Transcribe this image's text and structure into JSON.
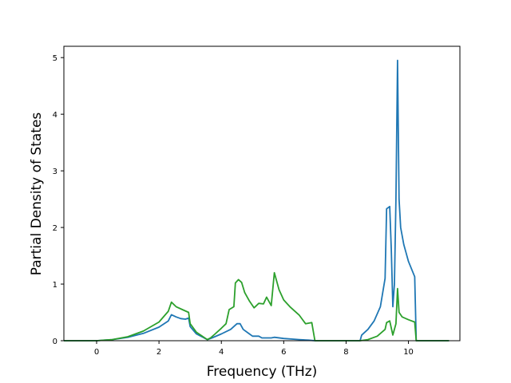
{
  "chart_data": {
    "type": "line",
    "title": "",
    "xlabel": "Frequency (THz)",
    "ylabel": "Partial Density of States",
    "xlim": [
      -1.05,
      11.65
    ],
    "ylim": [
      0,
      5.2
    ],
    "xticks": [
      0,
      2,
      4,
      6,
      8,
      10
    ],
    "yticks": [
      0,
      1,
      2,
      3,
      4,
      5
    ],
    "grid": false,
    "legend": "none",
    "series": [
      {
        "color": "#1f77b4",
        "points": [
          [
            -1.05,
            0
          ],
          [
            0,
            0
          ],
          [
            0.5,
            0.02
          ],
          [
            1,
            0.06
          ],
          [
            1.5,
            0.13
          ],
          [
            2,
            0.24
          ],
          [
            2.3,
            0.35
          ],
          [
            2.4,
            0.46
          ],
          [
            2.55,
            0.42
          ],
          [
            2.7,
            0.39
          ],
          [
            2.85,
            0.38
          ],
          [
            2.95,
            0.4
          ],
          [
            3.0,
            0.25
          ],
          [
            3.2,
            0.12
          ],
          [
            3.55,
            0.02
          ],
          [
            3.7,
            0.05
          ],
          [
            4.0,
            0.12
          ],
          [
            4.3,
            0.2
          ],
          [
            4.5,
            0.3
          ],
          [
            4.6,
            0.3
          ],
          [
            4.7,
            0.2
          ],
          [
            4.9,
            0.12
          ],
          [
            5.0,
            0.08
          ],
          [
            5.2,
            0.08
          ],
          [
            5.3,
            0.05
          ],
          [
            5.6,
            0.05
          ],
          [
            5.7,
            0.06
          ],
          [
            6.0,
            0.04
          ],
          [
            6.5,
            0.02
          ],
          [
            6.8,
            0.01
          ],
          [
            7.0,
            0
          ],
          [
            8.45,
            0
          ],
          [
            8.5,
            0.1
          ],
          [
            8.7,
            0.2
          ],
          [
            8.9,
            0.35
          ],
          [
            9.1,
            0.6
          ],
          [
            9.25,
            1.1
          ],
          [
            9.3,
            2.33
          ],
          [
            9.4,
            2.37
          ],
          [
            9.45,
            1.6
          ],
          [
            9.5,
            0.6
          ],
          [
            9.55,
            1.0
          ],
          [
            9.6,
            2.5
          ],
          [
            9.65,
            4.95
          ],
          [
            9.7,
            2.5
          ],
          [
            9.75,
            2.0
          ],
          [
            9.85,
            1.7
          ],
          [
            10.0,
            1.4
          ],
          [
            10.2,
            1.13
          ],
          [
            10.25,
            0
          ],
          [
            11.3,
            0
          ]
        ]
      },
      {
        "color": "#2ca02c",
        "points": [
          [
            -1.05,
            0
          ],
          [
            0,
            0
          ],
          [
            0.5,
            0.02
          ],
          [
            1,
            0.07
          ],
          [
            1.5,
            0.17
          ],
          [
            2,
            0.33
          ],
          [
            2.3,
            0.52
          ],
          [
            2.4,
            0.68
          ],
          [
            2.55,
            0.6
          ],
          [
            2.75,
            0.55
          ],
          [
            2.95,
            0.5
          ],
          [
            3.0,
            0.3
          ],
          [
            3.2,
            0.15
          ],
          [
            3.55,
            0.02
          ],
          [
            3.65,
            0.05
          ],
          [
            3.8,
            0.12
          ],
          [
            4.0,
            0.22
          ],
          [
            4.15,
            0.3
          ],
          [
            4.25,
            0.55
          ],
          [
            4.4,
            0.6
          ],
          [
            4.45,
            1.02
          ],
          [
            4.55,
            1.08
          ],
          [
            4.65,
            1.03
          ],
          [
            4.75,
            0.85
          ],
          [
            4.9,
            0.7
          ],
          [
            5.05,
            0.58
          ],
          [
            5.2,
            0.66
          ],
          [
            5.35,
            0.65
          ],
          [
            5.45,
            0.77
          ],
          [
            5.6,
            0.62
          ],
          [
            5.7,
            1.2
          ],
          [
            5.85,
            0.9
          ],
          [
            6.0,
            0.72
          ],
          [
            6.2,
            0.6
          ],
          [
            6.5,
            0.45
          ],
          [
            6.7,
            0.3
          ],
          [
            6.9,
            0.32
          ],
          [
            7.0,
            0
          ],
          [
            8.45,
            0
          ],
          [
            8.7,
            0.02
          ],
          [
            9.0,
            0.08
          ],
          [
            9.25,
            0.2
          ],
          [
            9.3,
            0.32
          ],
          [
            9.4,
            0.35
          ],
          [
            9.5,
            0.1
          ],
          [
            9.6,
            0.3
          ],
          [
            9.65,
            0.92
          ],
          [
            9.7,
            0.5
          ],
          [
            9.8,
            0.42
          ],
          [
            10.0,
            0.37
          ],
          [
            10.2,
            0.33
          ],
          [
            10.25,
            0
          ],
          [
            11.3,
            0
          ]
        ]
      }
    ]
  }
}
